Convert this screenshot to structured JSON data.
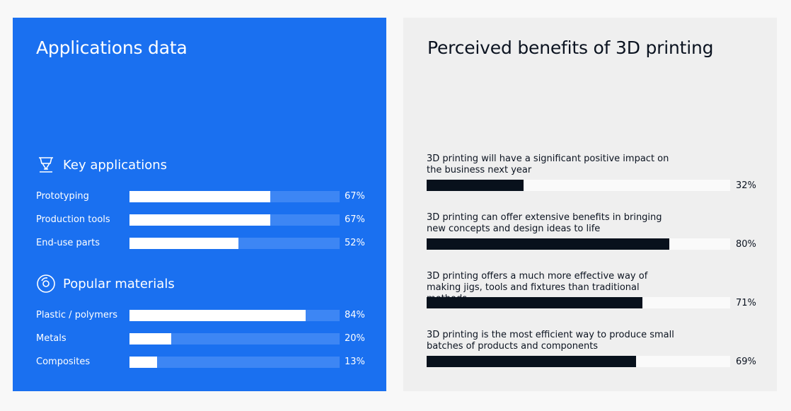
{
  "left": {
    "title": "Applications data",
    "sections": [
      {
        "heading": "Key applications",
        "icon": "printer-nozzle-icon",
        "items": [
          {
            "label": "Prototyping",
            "value": 67,
            "pct": "67%"
          },
          {
            "label": "Production tools",
            "value": 67,
            "pct": "67%"
          },
          {
            "label": "End-use parts",
            "value": 52,
            "pct": "52%"
          }
        ]
      },
      {
        "heading": "Popular materials",
        "icon": "filament-spool-icon",
        "items": [
          {
            "label": "Plastic / polymers",
            "value": 84,
            "pct": "84%"
          },
          {
            "label": "Metals",
            "value": 20,
            "pct": "20%"
          },
          {
            "label": "Composites",
            "value": 13,
            "pct": "13%"
          }
        ]
      }
    ]
  },
  "right": {
    "title": "Perceived benefits of 3D printing",
    "items": [
      {
        "label": "3D printing will have a significant positive impact on the business next year",
        "value": 32,
        "pct": "32%"
      },
      {
        "label": "3D printing can offer extensive benefits in bringing new concepts and design ideas to life",
        "value": 80,
        "pct": "80%"
      },
      {
        "label": "3D printing offers a much more effective way of making jigs, tools and fixtures than traditional methods",
        "value": 71,
        "pct": "71%"
      },
      {
        "label": "3D printing is the most efficient way to produce small batches of products and components",
        "value": 69,
        "pct": "69%"
      }
    ]
  },
  "colors": {
    "left_bg": "#1a70f0",
    "right_bg": "#efefef",
    "dark_bar": "#08111c"
  },
  "chart_data": [
    {
      "type": "bar",
      "orientation": "horizontal",
      "title": "Key applications",
      "categories": [
        "Prototyping",
        "Production tools",
        "End-use parts"
      ],
      "values": [
        67,
        67,
        52
      ],
      "xlim": [
        0,
        100
      ]
    },
    {
      "type": "bar",
      "orientation": "horizontal",
      "title": "Popular materials",
      "categories": [
        "Plastic / polymers",
        "Metals",
        "Composites"
      ],
      "values": [
        84,
        20,
        13
      ],
      "xlim": [
        0,
        100
      ]
    },
    {
      "type": "bar",
      "orientation": "horizontal",
      "title": "Perceived benefits of 3D printing",
      "categories": [
        "Significant positive impact next year",
        "Bringing new concepts to life",
        "Jigs, tools and fixtures",
        "Small batches"
      ],
      "values": [
        32,
        80,
        71,
        69
      ],
      "xlim": [
        0,
        100
      ]
    }
  ]
}
